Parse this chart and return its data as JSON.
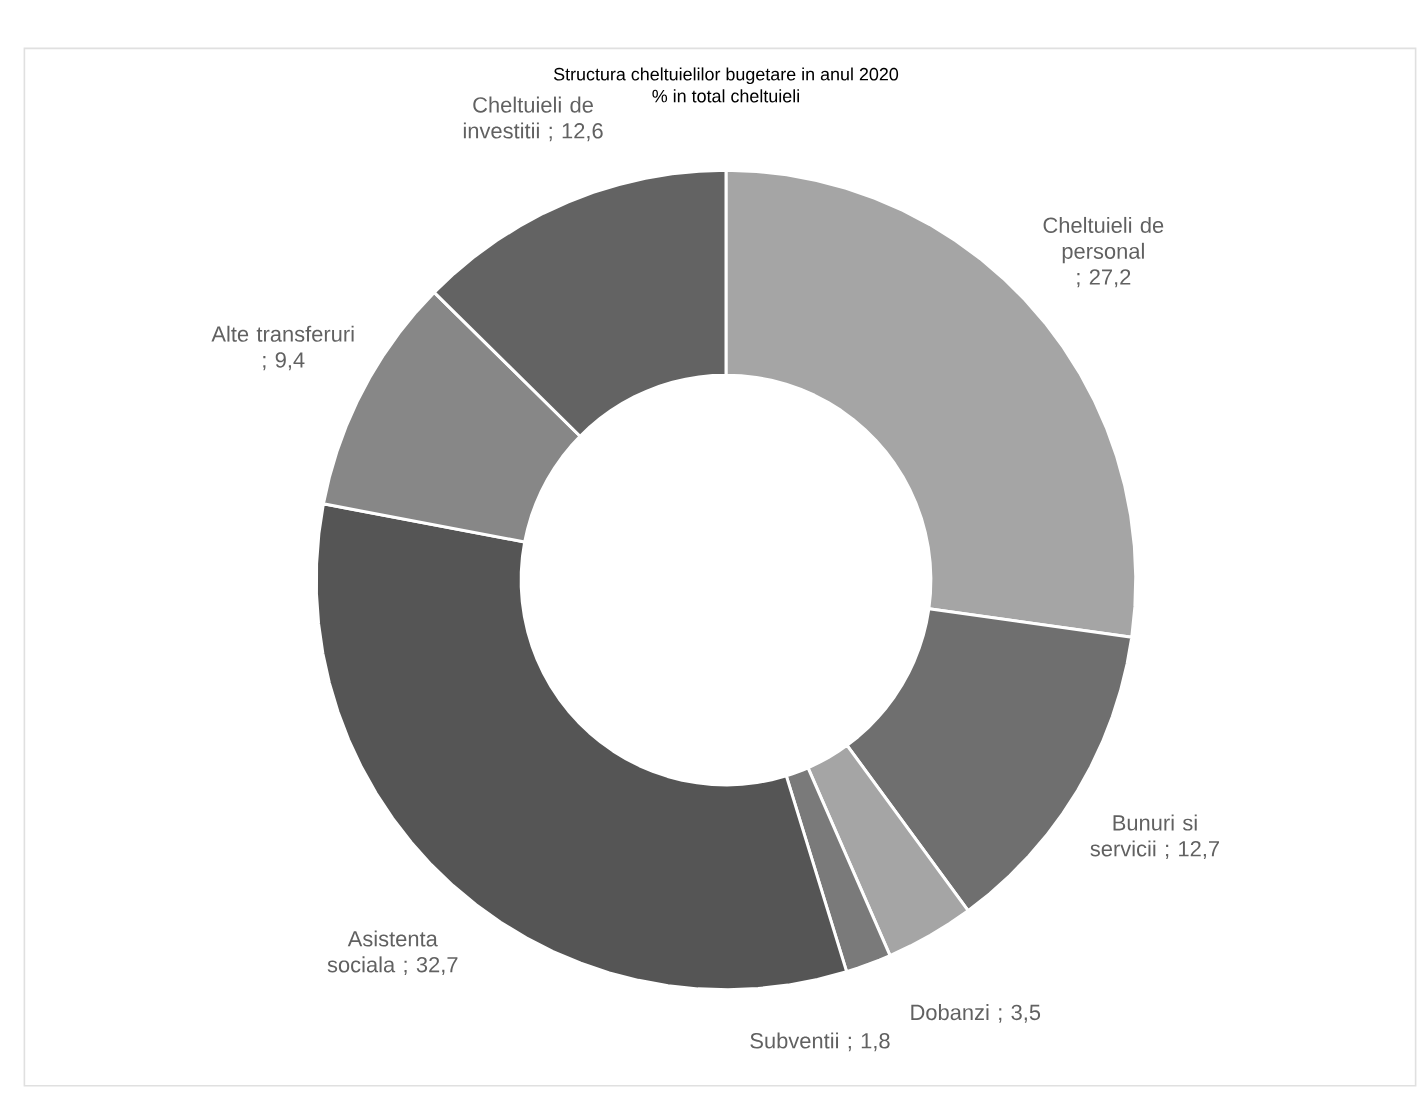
{
  "chart_data": {
    "type": "donut",
    "title": "Structura cheltuielilor bugetare in anul 2020",
    "subtitle": "% in total cheltuieli",
    "categories": [
      "Cheltuieli de personal",
      "Bunuri si servicii",
      "Dobanzi",
      "Subventii",
      "Asistenta sociala",
      "Alte transferuri",
      "Cheltuieli de investitii"
    ],
    "values": [
      27.2,
      12.7,
      3.5,
      1.8,
      32.7,
      9.4,
      12.6
    ],
    "value_labels": [
      "; 27,2",
      "; 12,7",
      "; 3,5",
      "; 1,8",
      "; 32,7",
      "; 9,4",
      "; 12,6"
    ],
    "colors": [
      "#a5a5a5",
      "#6f6f6f",
      "#a5a5a5",
      "#7a7a7a",
      "#555555",
      "#878787",
      "#636363"
    ]
  }
}
